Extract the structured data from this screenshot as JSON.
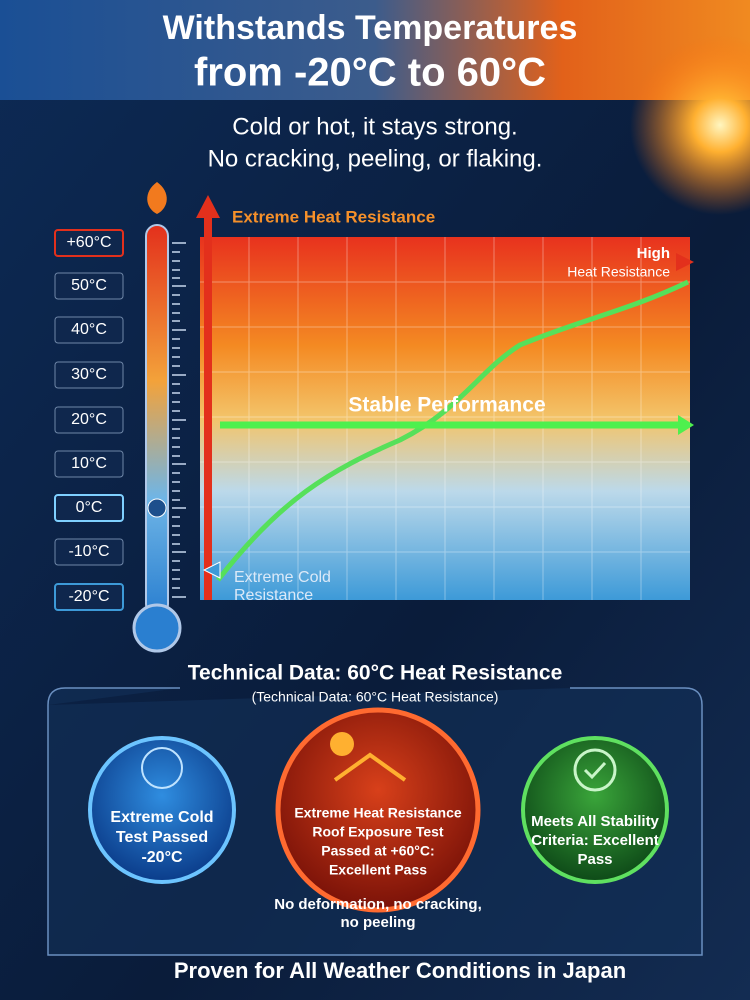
{
  "header": {
    "title_line1": "Withstands Temperatures",
    "title_line2": "from -20°C to 60°C",
    "subtitle_line1": "Cold or hot, it stays strong.",
    "subtitle_line2": "No cracking, peeling, or flaking."
  },
  "thermometer": {
    "labels": [
      "+60°C",
      "50°C",
      "40°C",
      "30°C",
      "20°C",
      "10°C",
      "0°C",
      "-10°C",
      "-20°C"
    ]
  },
  "graph": {
    "top_label": "Extreme Heat Resistance",
    "high_label_line1": "High",
    "high_label_line2": "Heat Resistance",
    "stable_label": "Stable Performance",
    "cold_label_line1": "Extreme Cold",
    "cold_label_line2": "Resistance"
  },
  "technical": {
    "title": "Technical Data: 60°C Heat Resistance",
    "subtitle": "(Technical Data: 60°C Heat Resistance)",
    "badges": [
      {
        "lines": [
          "Extreme Cold",
          "Test Passed",
          "-20°C"
        ]
      },
      {
        "lines": [
          "Extreme Heat Resistance",
          "Roof Exposure Test",
          "Passed at +60°C:",
          "Excellent Pass"
        ]
      },
      {
        "lines": [
          "Meets All Stability",
          "Criteria: Excellent",
          "Pass"
        ]
      }
    ],
    "note_lines": [
      "No deformation, no cracking,",
      "no peeling"
    ]
  },
  "footer": {
    "text": "Proven for All Weather Conditions in Japan"
  }
}
